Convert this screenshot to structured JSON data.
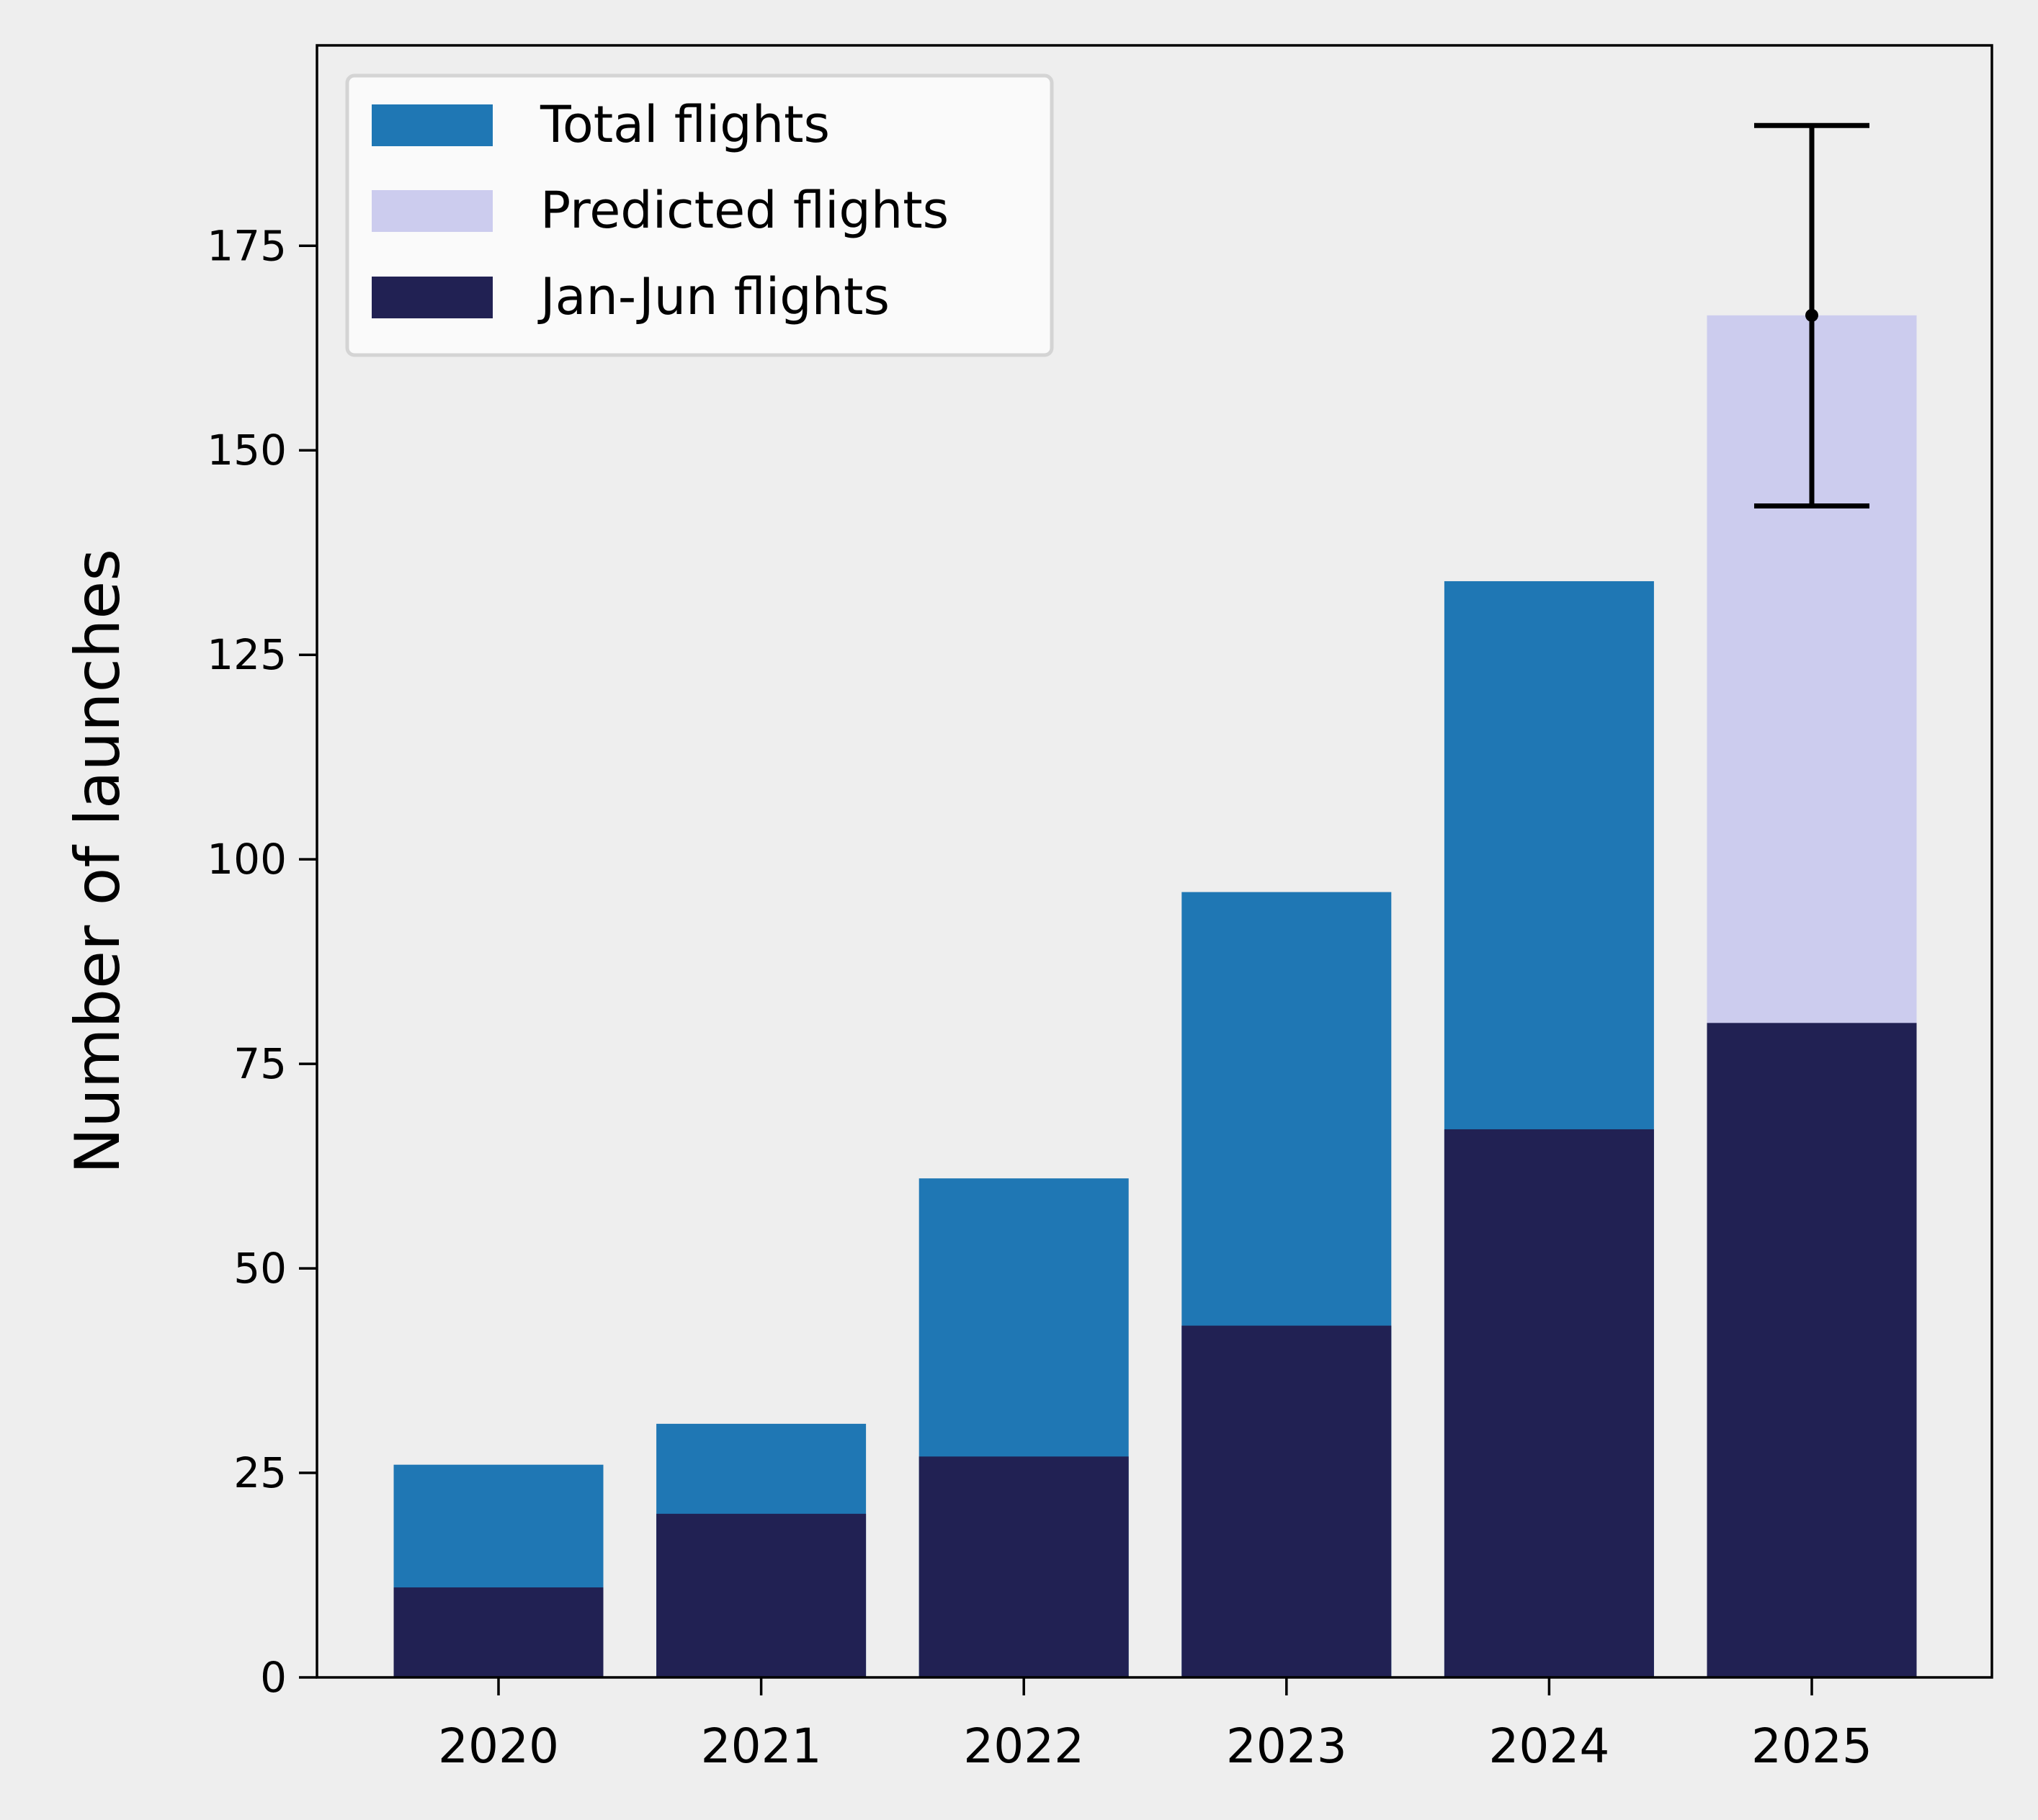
{
  "chart_data": {
    "type": "bar",
    "title": "",
    "xlabel": "",
    "ylabel": "Number of launches",
    "categories": [
      "2020",
      "2021",
      "2022",
      "2023",
      "2024",
      "2025"
    ],
    "ylim": [
      0,
      199.5
    ],
    "yticks": [
      "0",
      "25",
      "50",
      "75",
      "100",
      "125",
      "150",
      "175"
    ],
    "grid": false,
    "legend_position": "top-left",
    "series": [
      {
        "name": "Total flights",
        "color": "#1f77b4",
        "values": [
          26,
          31,
          61,
          96,
          134,
          null
        ]
      },
      {
        "name": "Predicted flights",
        "color": "#ccccee",
        "values": [
          null,
          null,
          null,
          null,
          null,
          166.5
        ]
      },
      {
        "name": "Jan-Jun flights",
        "color": "#212153",
        "values": [
          11,
          20,
          27,
          43,
          67,
          80
        ]
      }
    ],
    "error_bar": {
      "category": "2025",
      "center": 166.5,
      "low": 143.2,
      "high": 189.7,
      "color": "#000000"
    }
  }
}
